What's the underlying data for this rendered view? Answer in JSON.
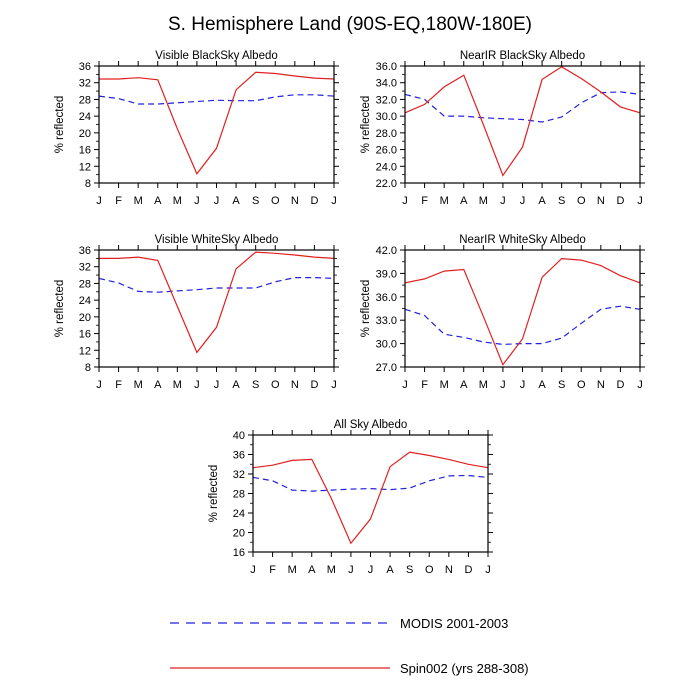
{
  "figure": {
    "title": "S. Hemisphere Land (90S-EQ,180W-180E)"
  },
  "legend": {
    "placement": "bottom",
    "entries": [
      {
        "label": "MODIS 2001-2003",
        "color": "#2222dd",
        "style": "dashed"
      },
      {
        "label": "Spin002 (yrs 288-308)",
        "color": "#e02020",
        "style": "solid"
      }
    ]
  },
  "chart_data": [
    {
      "type": "line",
      "title": "Visible BlackSky Albedo",
      "ylabel": "% reflected",
      "x": [
        "J",
        "F",
        "M",
        "A",
        "M",
        "J",
        "J",
        "A",
        "S",
        "O",
        "N",
        "D",
        "J"
      ],
      "ylim": [
        8,
        36
      ],
      "yticks": [
        8,
        12,
        16,
        20,
        24,
        28,
        32,
        36
      ],
      "ytick_labels": [
        "8",
        "12",
        "16",
        "20",
        "24",
        "28",
        "32",
        "36"
      ],
      "series": [
        {
          "name": "MODIS 2001-2003",
          "color": "#2222dd",
          "style": "dashed",
          "values": [
            28.8,
            28.2,
            26.9,
            26.9,
            27.2,
            27.5,
            27.8,
            27.7,
            27.7,
            28.6,
            29.1,
            29.1,
            28.8
          ]
        },
        {
          "name": "Spin002 (yrs 288-308)",
          "color": "#e02020",
          "style": "solid",
          "values": [
            32.9,
            32.9,
            33.2,
            32.7,
            21.0,
            10.2,
            16.3,
            30.3,
            34.5,
            34.2,
            33.6,
            33.1,
            32.9
          ]
        }
      ]
    },
    {
      "type": "line",
      "title": "NearIR BlackSky Albedo",
      "ylabel": "% reflected",
      "x": [
        "J",
        "F",
        "M",
        "A",
        "M",
        "J",
        "J",
        "A",
        "S",
        "O",
        "N",
        "D",
        "J"
      ],
      "ylim": [
        22,
        36
      ],
      "yticks": [
        22,
        24,
        26,
        28,
        30,
        32,
        34,
        36
      ],
      "ytick_labels": [
        "22.0",
        "24.0",
        "26.0",
        "28.0",
        "30.0",
        "32.0",
        "34.0",
        "36.0"
      ],
      "series": [
        {
          "name": "MODIS 2001-2003",
          "color": "#2222dd",
          "style": "dashed",
          "values": [
            32.6,
            32.0,
            30.0,
            30.0,
            29.8,
            29.7,
            29.6,
            29.3,
            29.9,
            31.6,
            32.8,
            32.9,
            32.6
          ]
        },
        {
          "name": "Spin002 (yrs 288-308)",
          "color": "#e02020",
          "style": "solid",
          "values": [
            30.4,
            31.4,
            33.5,
            34.9,
            29.0,
            22.9,
            26.3,
            34.4,
            35.9,
            34.5,
            32.9,
            31.1,
            30.4
          ]
        }
      ]
    },
    {
      "type": "line",
      "title": "Visible WhiteSky Albedo",
      "ylabel": "% reflected",
      "x": [
        "J",
        "F",
        "M",
        "A",
        "M",
        "J",
        "J",
        "A",
        "S",
        "O",
        "N",
        "D",
        "J"
      ],
      "ylim": [
        8,
        36
      ],
      "yticks": [
        8,
        12,
        16,
        20,
        24,
        28,
        32,
        36
      ],
      "ytick_labels": [
        "8",
        "12",
        "16",
        "20",
        "24",
        "28",
        "32",
        "36"
      ],
      "series": [
        {
          "name": "MODIS 2001-2003",
          "color": "#2222dd",
          "style": "dashed",
          "values": [
            29.2,
            28.1,
            26.1,
            25.9,
            26.2,
            26.5,
            26.9,
            26.9,
            26.9,
            28.4,
            29.4,
            29.4,
            29.2
          ]
        },
        {
          "name": "Spin002 (yrs 288-308)",
          "color": "#e02020",
          "style": "solid",
          "values": [
            34.0,
            34.0,
            34.3,
            33.5,
            22.5,
            11.5,
            17.5,
            31.5,
            35.5,
            35.2,
            34.8,
            34.3,
            34.0
          ]
        }
      ]
    },
    {
      "type": "line",
      "title": "NearIR WhiteSky Albedo",
      "ylabel": "% reflected",
      "x": [
        "J",
        "F",
        "M",
        "A",
        "M",
        "J",
        "J",
        "A",
        "S",
        "O",
        "N",
        "D",
        "J"
      ],
      "ylim": [
        27,
        42
      ],
      "yticks": [
        27,
        30,
        33,
        36,
        39,
        42
      ],
      "ytick_labels": [
        "27.0",
        "30.0",
        "33.0",
        "36.0",
        "39.0",
        "42.0"
      ],
      "series": [
        {
          "name": "MODIS 2001-2003",
          "color": "#2222dd",
          "style": "dashed",
          "values": [
            34.4,
            33.6,
            31.2,
            30.8,
            30.2,
            29.9,
            30.0,
            30.0,
            30.7,
            32.6,
            34.4,
            34.8,
            34.4
          ]
        },
        {
          "name": "Spin002 (yrs 288-308)",
          "color": "#e02020",
          "style": "solid",
          "values": [
            37.8,
            38.3,
            39.3,
            39.5,
            33.5,
            27.3,
            30.6,
            38.5,
            40.9,
            40.7,
            40.0,
            38.7,
            37.8
          ]
        }
      ]
    },
    {
      "type": "line",
      "title": "All Sky Albedo",
      "ylabel": "% reflected",
      "x": [
        "J",
        "F",
        "M",
        "A",
        "M",
        "J",
        "J",
        "A",
        "S",
        "O",
        "N",
        "D",
        "J"
      ],
      "ylim": [
        16,
        40
      ],
      "yticks": [
        16,
        20,
        24,
        28,
        32,
        36,
        40
      ],
      "ytick_labels": [
        "16",
        "20",
        "24",
        "28",
        "32",
        "36",
        "40"
      ],
      "series": [
        {
          "name": "MODIS 2001-2003",
          "color": "#2222dd",
          "style": "dashed",
          "values": [
            31.3,
            30.6,
            28.7,
            28.5,
            28.7,
            28.9,
            29.0,
            28.8,
            29.1,
            30.6,
            31.6,
            31.7,
            31.3
          ]
        },
        {
          "name": "Spin002 (yrs 288-308)",
          "color": "#e02020",
          "style": "solid",
          "values": [
            33.3,
            33.8,
            34.8,
            35.0,
            27.0,
            17.8,
            22.8,
            33.5,
            36.5,
            35.8,
            35.0,
            34.0,
            33.3
          ]
        }
      ]
    }
  ]
}
